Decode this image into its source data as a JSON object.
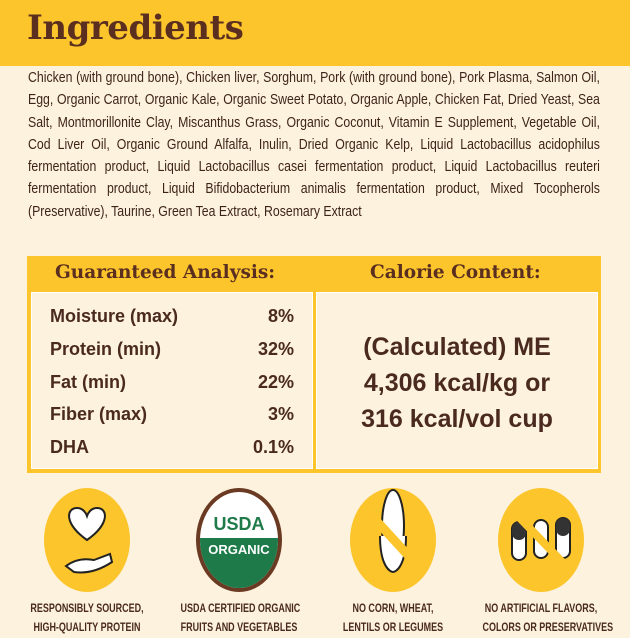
{
  "header": {
    "title": "Ingredients"
  },
  "ingredients": "Chicken (with ground bone), Chicken liver, Sorghum, Pork (with ground bone), Pork Plasma, Salmon Oil, Egg, Organic Carrot, Organic Kale, Organic Sweet Potato, Organic Apple, Chicken Fat, Dried Yeast, Sea Salt, Montmorillonite Clay, Miscanthus Grass, Organic Coconut, Vitamin E Supplement, Vegetable Oil, Cod Liver Oil, Organic Ground Alfalfa, Inulin, Dried Organic Kelp, Liquid Lactobacillus acidophilus fermentation product, Liquid Lactobacillus casei fermentation product, Liquid Lactobacillus reuteri fermentation product, Liquid Bifidobacterium animalis fermentation product, Mixed Tocopherols (Preservative), Taurine, Green Tea Extract, Rosemary Extract",
  "analysis": {
    "title": "Guaranteed Analysis:",
    "rows": [
      {
        "label": "Moisture (max)",
        "value": "8%"
      },
      {
        "label": "Protein (min)",
        "value": "32%"
      },
      {
        "label": "Fat (min)",
        "value": "22%"
      },
      {
        "label": "Fiber (max)",
        "value": "3%"
      },
      {
        "label": "DHA",
        "value": "0.1%"
      }
    ]
  },
  "calorie": {
    "title": "Calorie Content:",
    "lines": [
      "(Calculated) ME",
      "4,306 kcal/kg or",
      "316 kcal/vol cup"
    ]
  },
  "badges": [
    {
      "icon": "heart-hand-icon",
      "line1": "RESPONSIBLY SOURCED,",
      "line2": "HIGH-QUALITY PROTEIN"
    },
    {
      "icon": "usda-organic-seal-icon",
      "seal_top": "USDA",
      "seal_bottom": "ORGANIC",
      "line1": "USDA CERTIFIED ORGANIC",
      "line2": "FRUITS AND VEGETABLES"
    },
    {
      "icon": "no-corn-icon",
      "line1": "NO CORN, WHEAT,",
      "line2": "LENTILS OR LEGUMES"
    },
    {
      "icon": "no-capsules-icon",
      "line1": "NO ARTIFICIAL FLAVORS,",
      "line2": "COLORS OR PRESERVATIVES"
    }
  ],
  "colors": {
    "yellow": "#fdc52c",
    "cream": "#fdf2de",
    "brown": "#4a2a1e",
    "usda_green": "#1f7a4a"
  }
}
